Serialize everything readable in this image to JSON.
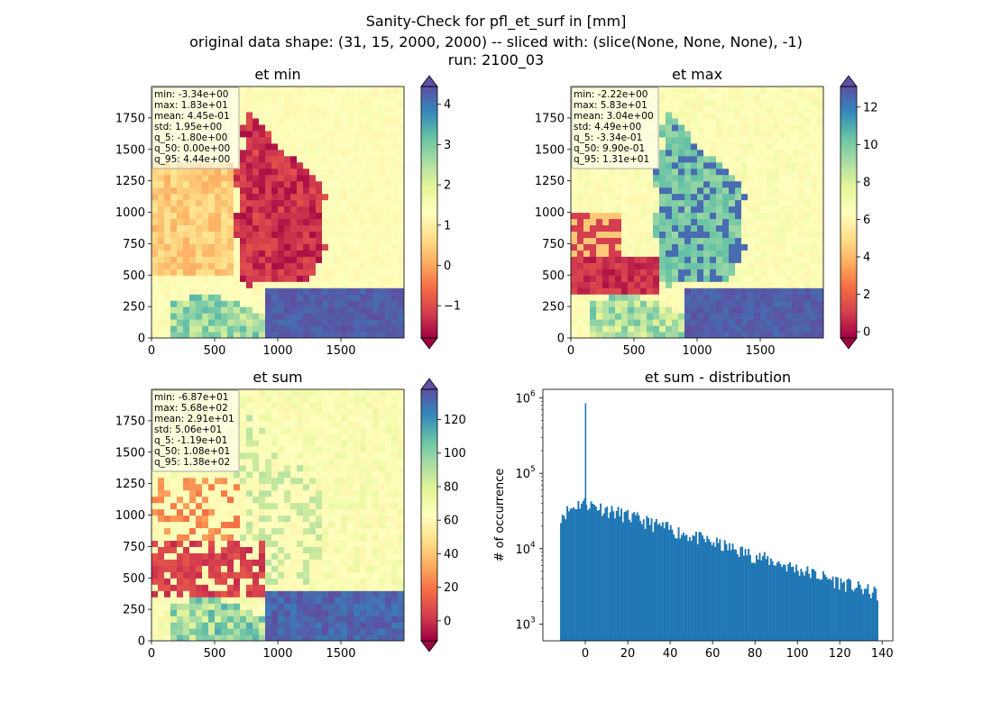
{
  "figure": {
    "title_lines": [
      "Sanity-Check for pfl_et_surf in [mm]",
      "original data shape: (31, 15, 2000, 2000) -- sliced with: (slice(None, None, None), -1)",
      "run: 2100_03"
    ]
  },
  "colormap": {
    "name": "Spectral",
    "stops": [
      "#9e0142",
      "#d53e4f",
      "#f46d43",
      "#fdae61",
      "#fee08b",
      "#ffffbf",
      "#e6f598",
      "#abdda4",
      "#66c2a5",
      "#3288bd",
      "#5e4fa2"
    ]
  },
  "chart_data": [
    {
      "type": "heatmap",
      "name": "et-min",
      "title": "et min",
      "xlim": [
        0,
        2000
      ],
      "ylim": [
        0,
        2000
      ],
      "xticks": [
        "0",
        "500",
        "1000",
        "1500"
      ],
      "yticks": [
        "0",
        "250",
        "500",
        "750",
        "1000",
        "1250",
        "1500",
        "1750"
      ],
      "colorbar": {
        "vmin": -1.8,
        "vmax": 4.44,
        "ticks": [
          -1,
          0,
          1,
          2,
          3,
          4
        ],
        "tick_labels": [
          "−1",
          "0",
          "1",
          "2",
          "3",
          "4"
        ],
        "extend": "both"
      },
      "stats": [
        "min: -3.34e+00",
        "max: 1.83e+01",
        "mean: 4.45e-01",
        "std: 1.95e+00",
        "q_5: -1.80e+00",
        "q_50: 0.00e+00",
        "q_95: 4.44e+00"
      ]
    },
    {
      "type": "heatmap",
      "name": "et-max",
      "title": "et max",
      "xlim": [
        0,
        2000
      ],
      "ylim": [
        0,
        2000
      ],
      "xticks": [
        "0",
        "500",
        "1000",
        "1500"
      ],
      "yticks": [
        "0",
        "250",
        "500",
        "750",
        "1000",
        "1250",
        "1500",
        "1750"
      ],
      "colorbar": {
        "vmin": -0.334,
        "vmax": 13.1,
        "ticks": [
          0,
          2,
          4,
          6,
          8,
          10,
          12
        ],
        "tick_labels": [
          "0",
          "2",
          "4",
          "6",
          "8",
          "10",
          "12"
        ],
        "extend": "both"
      },
      "stats": [
        "min: -2.22e+00",
        "max: 5.83e+01",
        "mean: 3.04e+00",
        "std: 4.49e+00",
        "q_5: -3.34e-01",
        "q_50: 9.90e-01",
        "q_95: 1.31e+01"
      ]
    },
    {
      "type": "heatmap",
      "name": "et-sum",
      "title": "et sum",
      "xlim": [
        0,
        2000
      ],
      "ylim": [
        0,
        2000
      ],
      "xticks": [
        "0",
        "500",
        "1000",
        "1500"
      ],
      "yticks": [
        "0",
        "250",
        "500",
        "750",
        "1000",
        "1250",
        "1500",
        "1750"
      ],
      "colorbar": {
        "vmin": -11.9,
        "vmax": 138,
        "ticks": [
          0,
          20,
          40,
          60,
          80,
          100,
          120
        ],
        "tick_labels": [
          "0",
          "20",
          "40",
          "60",
          "80",
          "100",
          "120"
        ],
        "extend": "both"
      },
      "stats": [
        "min: -6.87e+01",
        "max: 5.68e+02",
        "mean: 2.91e+01",
        "std: 5.06e+01",
        "q_5: -1.19e+01",
        "q_50: 1.08e+01",
        "q_95: 1.38e+02"
      ]
    },
    {
      "type": "bar",
      "name": "et-sum-distribution",
      "title": "et sum - distribution",
      "ylabel": "# of occurrence",
      "yscale": "log",
      "xlim": [
        -20,
        145
      ],
      "ylim": [
        600,
        1300000
      ],
      "xticks": [
        0,
        20,
        40,
        60,
        80,
        100,
        120,
        140
      ],
      "ytick_labels": [
        {
          "exp": 3,
          "value": 1000
        },
        {
          "exp": 4,
          "value": 10000
        },
        {
          "exp": 5,
          "value": 100000
        },
        {
          "exp": 6,
          "value": 1000000
        }
      ],
      "color": "#1f77b4",
      "spike": {
        "x": 0,
        "count": 850000
      },
      "series_start_count": 28000,
      "peak_count": 42000,
      "end_count": 2500,
      "bins": {
        "start": -11.9,
        "end": 138,
        "width": 0.75
      }
    }
  ]
}
